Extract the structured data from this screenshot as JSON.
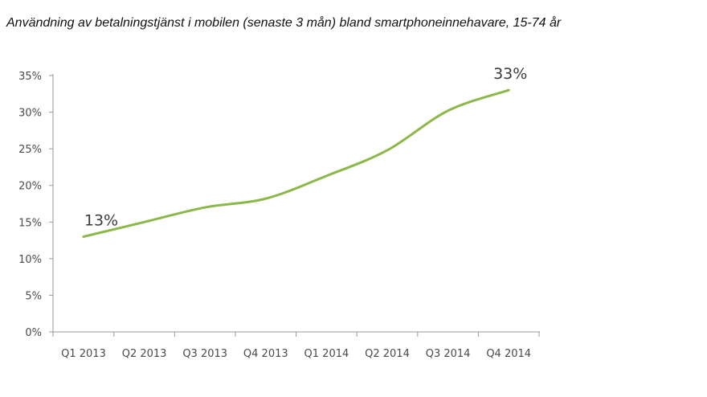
{
  "chart_data": {
    "type": "line",
    "title": "Användning av betalningstjänst i mobilen (senaste 3 mån) bland smartphoneinnehavare, 15-74 år",
    "categories": [
      "Q1 2013",
      "Q2 2013",
      "Q3 2013",
      "Q4 2013",
      "Q1 2014",
      "Q2 2014",
      "Q3 2014",
      "Q4 2014"
    ],
    "series": [
      {
        "values": [
          13,
          15,
          17,
          18.2,
          21.3,
          24.8,
          30.2,
          33
        ],
        "color": "#8cb84a"
      }
    ],
    "ylim": [
      0,
      35
    ],
    "yticks": [
      0,
      5,
      10,
      15,
      20,
      25,
      30,
      35
    ],
    "ytick_labels": [
      "0%",
      "5%",
      "10%",
      "15%",
      "20%",
      "25%",
      "30%",
      "35%"
    ],
    "data_labels": [
      {
        "index": 0,
        "text": "13%"
      },
      {
        "index": 7,
        "text": "33%"
      }
    ],
    "grid": false,
    "legend": "none"
  }
}
